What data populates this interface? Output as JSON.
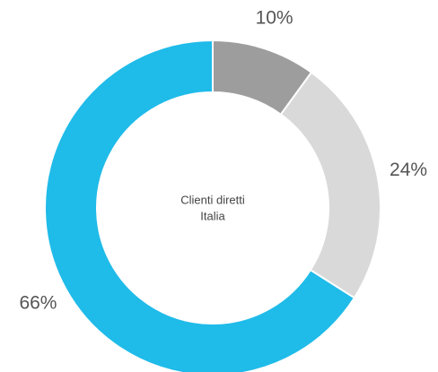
{
  "chart_data": {
    "type": "donut",
    "center_label": [
      "Clienti diretti",
      "Italia"
    ],
    "categories": [
      null,
      null,
      null
    ],
    "values": [
      10,
      24,
      66
    ],
    "value_labels": [
      "10%",
      "24%",
      "66%"
    ],
    "colors": [
      "#9d9d9e",
      "#d9d9da",
      "#1fbbe9"
    ]
  }
}
